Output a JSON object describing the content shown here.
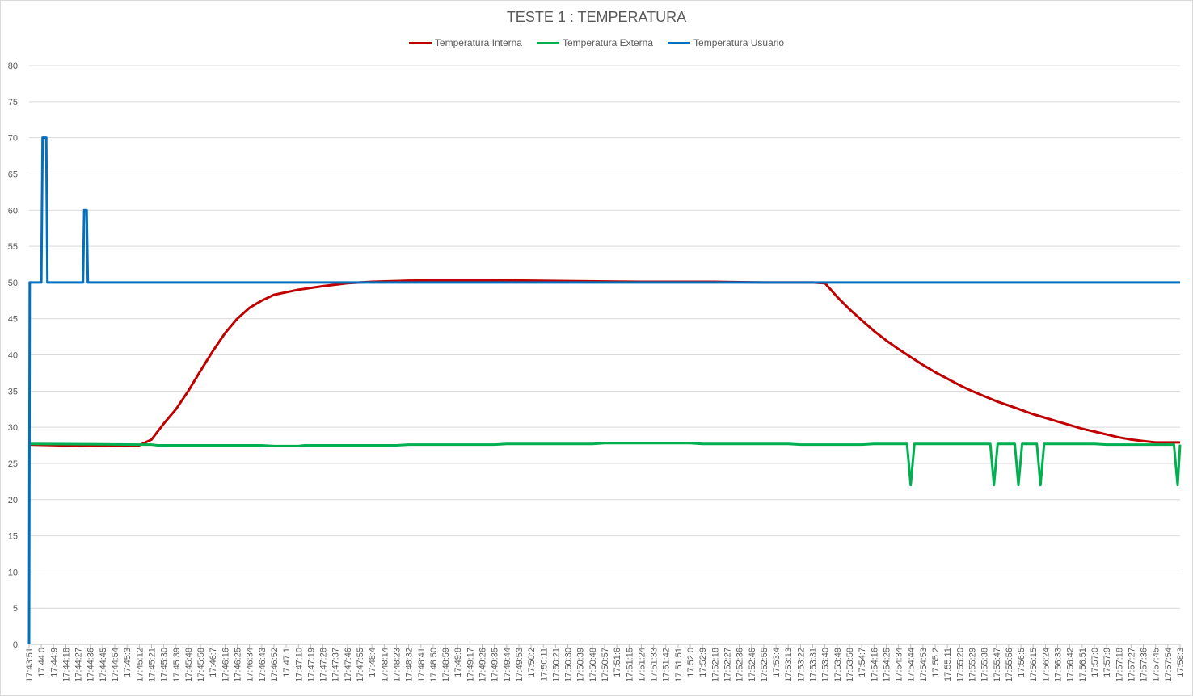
{
  "chart_data": {
    "type": "line",
    "title": "TESTE 1 : TEMPERATURA",
    "xlabel": "",
    "ylabel": "",
    "ylim": [
      0,
      80
    ],
    "yticks": [
      0,
      5,
      10,
      15,
      20,
      25,
      30,
      35,
      40,
      45,
      50,
      55,
      60,
      65,
      70,
      75,
      80
    ],
    "grid": true,
    "legend_position": "top",
    "x_tick_labels": [
      "17:43:51",
      "17:44:0",
      "17:44:9",
      "17:44:18",
      "17:44:27",
      "17:44:36",
      "17:44:45",
      "17:44:54",
      "17:45:3",
      "17:45:12",
      "17:45:21",
      "17:45:30",
      "17:45:39",
      "17:45:48",
      "17:45:58",
      "17:46:7",
      "17:46:16",
      "17:46:25",
      "17:46:34",
      "17:46:43",
      "17:46:52",
      "17:47:1",
      "17:47:10",
      "17:47:19",
      "17:47:28",
      "17:47:37",
      "17:47:46",
      "17:47:55",
      "17:48:4",
      "17:48:14",
      "17:48:23",
      "17:48:32",
      "17:48:41",
      "17:48:50",
      "17:48:59",
      "17:49:8",
      "17:49:17",
      "17:49:26",
      "17:49:35",
      "17:49:44",
      "17:49:53",
      "17:50:2",
      "17:50:11",
      "17:50:21",
      "17:50:30",
      "17:50:39",
      "17:50:48",
      "17:50:57",
      "17:51:6",
      "17:51:15",
      "17:51:24",
      "17:51:33",
      "17:51:42",
      "17:51:51",
      "17:52:0",
      "17:52:9",
      "17:52:18",
      "17:52:27",
      "17:52:36",
      "17:52:46",
      "17:52:55",
      "17:53:4",
      "17:53:13",
      "17:53:22",
      "17:53:31",
      "17:53:40",
      "17:53:49",
      "17:53:58",
      "17:54:7",
      "17:54:16",
      "17:54:25",
      "17:54:34",
      "17:54:44",
      "17:54:53",
      "17:55:2",
      "17:55:11",
      "17:55:20",
      "17:55:29",
      "17:55:38",
      "17:55:47",
      "17:55:56",
      "17:56:5",
      "17:56:15",
      "17:56:24",
      "17:56:33",
      "17:56:42",
      "17:56:51",
      "17:57:0",
      "17:57:9",
      "17:57:18",
      "17:57:27",
      "17:57:36",
      "17:57:45",
      "17:57:54",
      "17:58:3"
    ],
    "series": [
      {
        "name": "Temperatura Interna",
        "color": "#c00000",
        "points": [
          [
            0,
            27.6
          ],
          [
            5,
            27.4
          ],
          [
            9,
            27.5
          ],
          [
            10,
            28.3
          ],
          [
            11,
            30.5
          ],
          [
            12,
            32.5
          ],
          [
            13,
            35
          ],
          [
            14,
            37.8
          ],
          [
            15,
            40.5
          ],
          [
            16,
            43
          ],
          [
            17,
            45
          ],
          [
            18,
            46.5
          ],
          [
            19,
            47.5
          ],
          [
            20,
            48.3
          ],
          [
            22,
            49
          ],
          [
            24,
            49.5
          ],
          [
            26,
            49.9
          ],
          [
            28,
            50.1
          ],
          [
            32,
            50.3
          ],
          [
            38,
            50.3
          ],
          [
            44,
            50.2
          ],
          [
            50,
            50.1
          ],
          [
            56,
            50.1
          ],
          [
            60,
            50
          ],
          [
            64,
            50
          ],
          [
            65,
            49.9
          ],
          [
            66,
            48
          ],
          [
            67,
            46.3
          ],
          [
            68,
            44.8
          ],
          [
            69,
            43.3
          ],
          [
            70,
            42
          ],
          [
            71,
            40.8
          ],
          [
            72,
            39.7
          ],
          [
            73,
            38.6
          ],
          [
            74,
            37.6
          ],
          [
            75,
            36.7
          ],
          [
            76,
            35.8
          ],
          [
            77,
            35
          ],
          [
            78,
            34.3
          ],
          [
            79,
            33.6
          ],
          [
            80,
            33
          ],
          [
            81,
            32.4
          ],
          [
            82,
            31.8
          ],
          [
            83,
            31.3
          ],
          [
            84,
            30.8
          ],
          [
            85,
            30.3
          ],
          [
            86,
            29.8
          ],
          [
            87,
            29.4
          ],
          [
            88,
            29
          ],
          [
            89,
            28.6
          ],
          [
            90,
            28.3
          ],
          [
            91,
            28.1
          ],
          [
            92,
            27.9
          ],
          [
            93,
            27.9
          ],
          [
            94,
            27.9
          ]
        ]
      },
      {
        "name": "Temperatura Externa",
        "color": "#00b050",
        "points": [
          [
            0,
            27.7
          ],
          [
            9,
            27.6
          ],
          [
            10,
            27.6
          ],
          [
            10.5,
            27.5
          ],
          [
            19,
            27.5
          ],
          [
            20,
            27.4
          ],
          [
            22,
            27.4
          ],
          [
            22.5,
            27.5
          ],
          [
            30,
            27.5
          ],
          [
            31,
            27.6
          ],
          [
            38,
            27.6
          ],
          [
            39,
            27.7
          ],
          [
            46,
            27.7
          ],
          [
            47,
            27.8
          ],
          [
            54,
            27.8
          ],
          [
            55,
            27.7
          ],
          [
            62,
            27.7
          ],
          [
            63,
            27.6
          ],
          [
            68,
            27.6
          ],
          [
            69,
            27.7
          ],
          [
            71.7,
            27.7
          ],
          [
            72,
            22
          ],
          [
            72.3,
            27.7
          ],
          [
            78.5,
            27.7
          ],
          [
            78.8,
            22
          ],
          [
            79.1,
            27.7
          ],
          [
            80.5,
            27.7
          ],
          [
            80.8,
            22
          ],
          [
            81.1,
            27.7
          ],
          [
            82.3,
            27.7
          ],
          [
            82.6,
            22
          ],
          [
            82.9,
            27.7
          ],
          [
            87,
            27.7
          ],
          [
            88,
            27.6
          ],
          [
            93.5,
            27.6
          ],
          [
            93.8,
            22
          ],
          [
            94,
            27.6
          ]
        ]
      },
      {
        "name": "Temperatura Usuario",
        "color": "#0070c0",
        "points": [
          [
            0,
            0
          ],
          [
            0.05,
            50
          ],
          [
            1,
            50
          ],
          [
            1.1,
            70
          ],
          [
            1.4,
            70
          ],
          [
            1.5,
            50
          ],
          [
            4.4,
            50
          ],
          [
            4.5,
            60
          ],
          [
            4.7,
            60
          ],
          [
            4.8,
            50
          ],
          [
            94,
            50
          ]
        ]
      }
    ]
  }
}
